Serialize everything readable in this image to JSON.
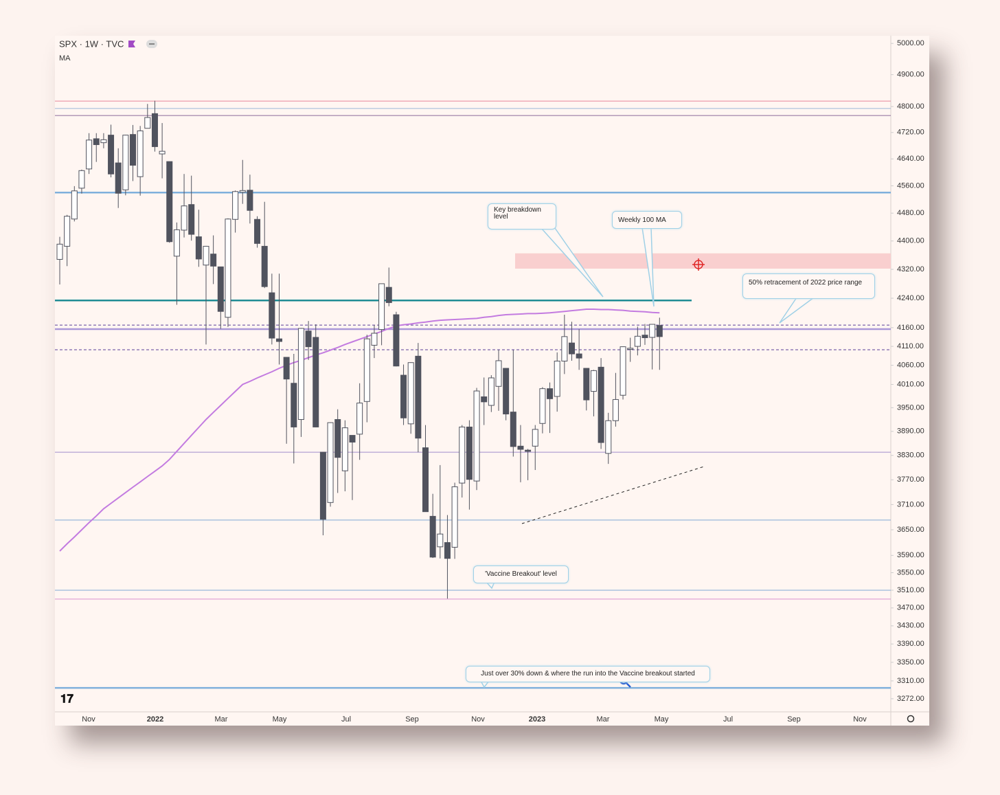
{
  "chart_data": {
    "type": "candlestick",
    "title": "SPX · 1W · TVC",
    "subtitle": "MA",
    "log_scale": true,
    "ylim": [
      3253,
      5025
    ],
    "yticks": [
      {
        "value": 5000,
        "label": "5000.00"
      },
      {
        "value": 4900,
        "label": "4900.00"
      },
      {
        "value": 4800,
        "label": "4800.00"
      },
      {
        "value": 4720,
        "label": "4720.00"
      },
      {
        "value": 4640,
        "label": "4640.00"
      },
      {
        "value": 4560,
        "label": "4560.00"
      },
      {
        "value": 4480,
        "label": "4480.00"
      },
      {
        "value": 4400,
        "label": "4400.00"
      },
      {
        "value": 4320,
        "label": "4320.00"
      },
      {
        "value": 4240,
        "label": "4240.00"
      },
      {
        "value": 4160,
        "label": "4160.00"
      },
      {
        "value": 4110,
        "label": "4110.00"
      },
      {
        "value": 4060,
        "label": "4060.00"
      },
      {
        "value": 4010,
        "label": "4010.00"
      },
      {
        "value": 3950,
        "label": "3950.00"
      },
      {
        "value": 3890,
        "label": "3890.00"
      },
      {
        "value": 3830,
        "label": "3830.00"
      },
      {
        "value": 3770,
        "label": "3770.00"
      },
      {
        "value": 3710,
        "label": "3710.00"
      },
      {
        "value": 3650,
        "label": "3650.00"
      },
      {
        "value": 3590,
        "label": "3590.00"
      },
      {
        "value": 3550,
        "label": "3550.00"
      },
      {
        "value": 3510,
        "label": "3510.00"
      },
      {
        "value": 3470,
        "label": "3470.00"
      },
      {
        "value": 3430,
        "label": "3430.00"
      },
      {
        "value": 3390,
        "label": "3390.00"
      },
      {
        "value": 3350,
        "label": "3350.00"
      },
      {
        "value": 3310,
        "label": "3310.00"
      },
      {
        "value": 3272,
        "label": "3272.00"
      }
    ],
    "xtick_labels": [
      "Nov",
      "2022",
      "Mar",
      "May",
      "Jul",
      "Sep",
      "Nov",
      "2023",
      "Mar",
      "May",
      "Jul",
      "Sep",
      "Nov"
    ],
    "up_color": "#ffffff",
    "down_color": "#50535e",
    "open": [
      4348,
      4385,
      4463,
      4553,
      4610,
      4701,
      4689,
      4712,
      4628,
      4548,
      4714,
      4587,
      4733,
      4778,
      4655,
      4632,
      4357,
      4431,
      4505,
      4412,
      4332,
      4363,
      4327,
      4188,
      4462,
      4541,
      4547,
      4462,
      4385,
      4255,
      4130,
      4081,
      4013,
      3920,
      4151,
      4134,
      3838,
      3715,
      3920,
      3792,
      3880,
      3883,
      3966,
      4113,
      4155,
      4270,
      4195,
      4034,
      3909,
      4084,
      3849,
      3682,
      3610,
      3620,
      3609,
      3762,
      3901,
      3767,
      3978,
      3956,
      4005,
      4052,
      3939,
      3853,
      3843,
      3853,
      3910,
      3999,
      3979,
      4071,
      4119,
      4090,
      4052,
      3992,
      4055,
      3835,
      3917,
      3982,
      4102,
      4110,
      4140,
      4134,
      4166
    ],
    "high": [
      4412,
      4475,
      4559,
      4608,
      4718,
      4718,
      4718,
      4744,
      4672,
      4713,
      4743,
      4740,
      4808,
      4818,
      4749,
      4632,
      4453,
      4595,
      4590,
      4490,
      4386,
      4416,
      4327,
      4465,
      4546,
      4637,
      4593,
      4471,
      4513,
      4308,
      4308,
      4081,
      4090,
      4159,
      4178,
      4169,
      3838,
      3913,
      3946,
      3918,
      3880,
      4013,
      4141,
      4167,
      4280,
      4325,
      4203,
      4062,
      4068,
      4119,
      3906,
      3736,
      3806,
      3685,
      3763,
      3906,
      3918,
      4001,
      4028,
      4034,
      4101,
      4052,
      4100,
      3906,
      3846,
      3906,
      4003,
      4015,
      4094,
      4195,
      4176,
      4156,
      4052,
      4048,
      4079,
      3937,
      4040,
      4110,
      4133,
      4163,
      4170,
      4170,
      4187
    ],
    "low": [
      4278,
      4329,
      4456,
      4537,
      4595,
      4631,
      4672,
      4585,
      4495,
      4532,
      4574,
      4531,
      4733,
      4662,
      4582,
      4395,
      4222,
      4410,
      4401,
      4327,
      4115,
      4279,
      4157,
      4162,
      4424,
      4507,
      4450,
      4381,
      4268,
      4115,
      4062,
      3859,
      3810,
      3876,
      4074,
      3900,
      3637,
      3705,
      3738,
      3742,
      3721,
      3819,
      3913,
      4079,
      4113,
      4218,
      4057,
      3906,
      3884,
      3838,
      3694,
      3584,
      3583,
      3491,
      3582,
      3727,
      3698,
      3745,
      3906,
      3939,
      3942,
      3918,
      3827,
      3764,
      3769,
      3794,
      3885,
      3886,
      3940,
      4037,
      4072,
      4048,
      3943,
      3928,
      3846,
      3809,
      3902,
      3971,
      4069,
      4086,
      4114,
      4049,
      4048
    ],
    "close": [
      4391,
      4471,
      4545,
      4605,
      4697,
      4683,
      4698,
      4595,
      4538,
      4712,
      4621,
      4725,
      4766,
      4677,
      4663,
      4398,
      4432,
      4501,
      4419,
      4349,
      4385,
      4329,
      4204,
      4463,
      4543,
      4546,
      4488,
      4393,
      4272,
      4132,
      4123,
      4024,
      3901,
      4158,
      4109,
      3901,
      3675,
      3912,
      3825,
      3899,
      3863,
      3962,
      4130,
      4145,
      4280,
      4228,
      4058,
      3924,
      4067,
      3873,
      3693,
      3586,
      3640,
      3583,
      3753,
      3901,
      3771,
      3993,
      3965,
      4027,
      4072,
      3934,
      3852,
      3845,
      3840,
      3895,
      3999,
      3973,
      4071,
      4136,
      4090,
      4079,
      3970,
      4046,
      3862,
      3917,
      3971,
      4109,
      4105,
      4137,
      4133,
      4169,
      4136
    ],
    "series": [
      {
        "name": "MA",
        "color": "#c37be0",
        "values": [
          3600,
          3617,
          3633,
          3650,
          3667,
          3683,
          3700,
          3713,
          3726,
          3739,
          3752,
          3765,
          3778,
          3791,
          3804,
          3820,
          3840,
          3860,
          3880,
          3900,
          3920,
          3938,
          3956,
          3974,
          3992,
          4010,
          4018,
          4027,
          4035,
          4043,
          4052,
          4060,
          4067,
          4073,
          4080,
          4087,
          4093,
          4100,
          4107,
          4115,
          4122,
          4129,
          4136,
          4143,
          4150,
          4158,
          4165,
          4168,
          4170,
          4173,
          4175,
          4178,
          4180,
          4181,
          4182,
          4183,
          4184,
          4185,
          4188,
          4190,
          4193,
          4195,
          4196,
          4197,
          4198,
          4198,
          4199,
          4200,
          4202,
          4204,
          4206,
          4208,
          4210,
          4210,
          4209,
          4209,
          4208,
          4207,
          4205,
          4204,
          4203,
          4201,
          4200
        ]
      }
    ],
    "levels": [
      {
        "value": 4817,
        "color": "#e8859a"
      },
      {
        "value": 4794,
        "color": "#9bb8d8"
      },
      {
        "value": 4772,
        "color": "#8a6a9a"
      },
      {
        "value": 4540,
        "color": "#7fb0dc",
        "thick": true
      },
      {
        "value": 4234,
        "color": "#1f8c94",
        "thick": true
      },
      {
        "value": 4167,
        "color": "#5a3e9a",
        "dashed": true
      },
      {
        "value": 4156,
        "color": "#a998d8",
        "thick": true
      },
      {
        "value": 4101,
        "color": "#5a3e9a",
        "dashed": true
      },
      {
        "value": 3838,
        "color": "#9f8dcc"
      },
      {
        "value": 3673,
        "color": "#7fa8d4"
      },
      {
        "value": 3510,
        "color": "#7fa8d4"
      },
      {
        "value": 3490,
        "color": "#d98fcf"
      },
      {
        "value": 3295,
        "color": "#7fb0dc",
        "thick": true
      }
    ],
    "zone": {
      "low": 4322,
      "high": 4365,
      "color": "#f9cfcf"
    },
    "annotations": [
      "Key breakdown level",
      "Weekly 100 MA",
      "50% retracement of 2022 price range",
      "'Vaccine Breakout' level",
      "Just over 30% down & where the run into the Vaccine breakout started"
    ]
  }
}
